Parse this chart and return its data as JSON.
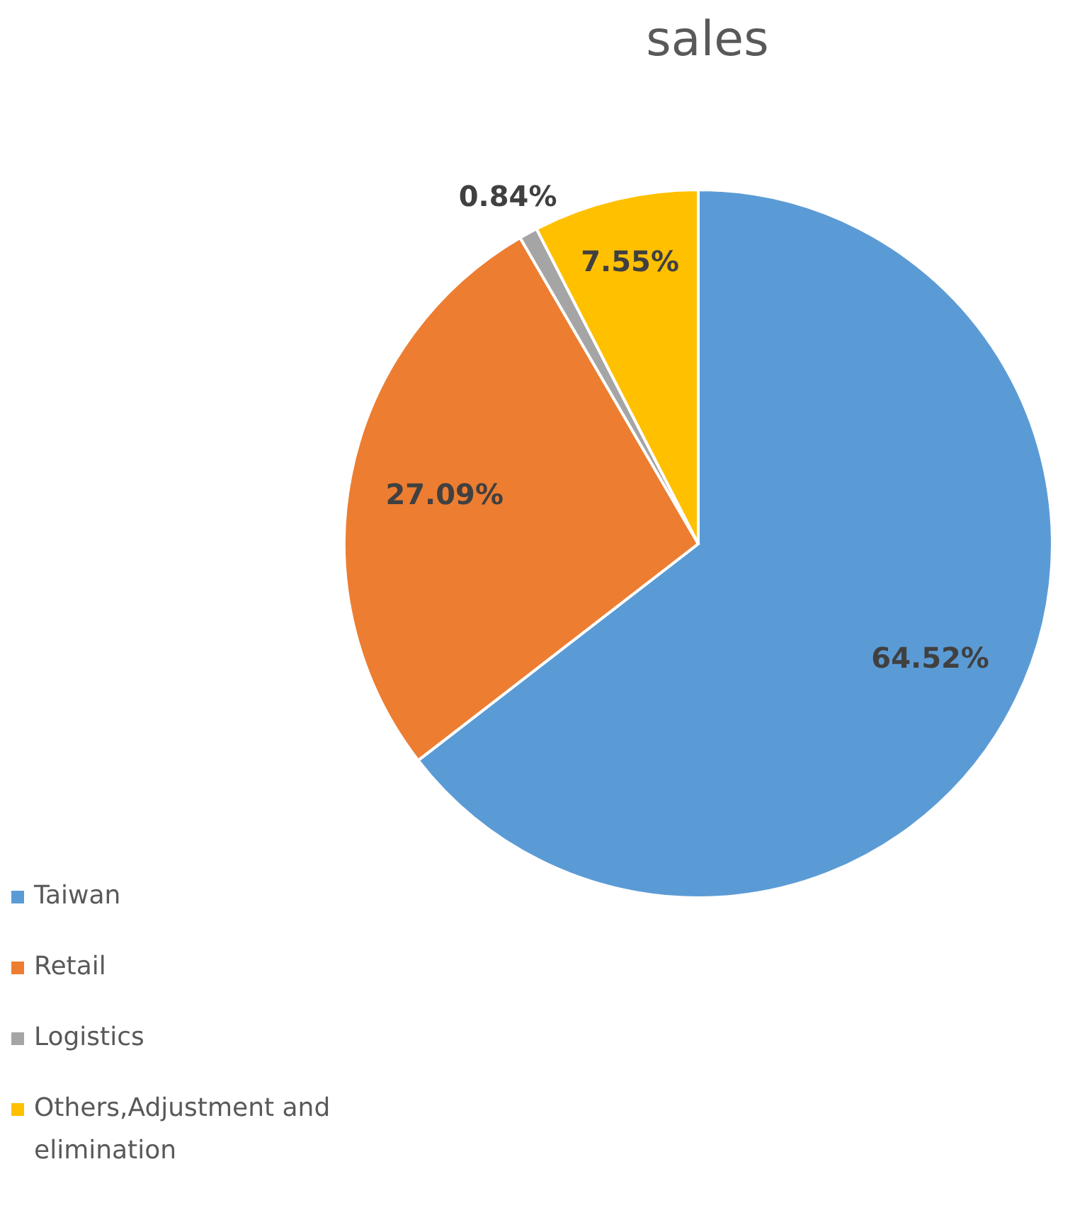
{
  "chart_data": {
    "type": "pie",
    "title": "sales",
    "categories": [
      "Taiwan",
      "Retail",
      "Logistics",
      "Others,Adjustment and elimination"
    ],
    "values": [
      64.52,
      27.09,
      0.84,
      7.55
    ],
    "colors": [
      "#5b9bd5",
      "#ed7d31",
      "#a5a5a5",
      "#ffc000"
    ],
    "value_labels": [
      "64.52%",
      "27.09%",
      "0.84%",
      "7.55%"
    ],
    "legend": "bottom left"
  }
}
